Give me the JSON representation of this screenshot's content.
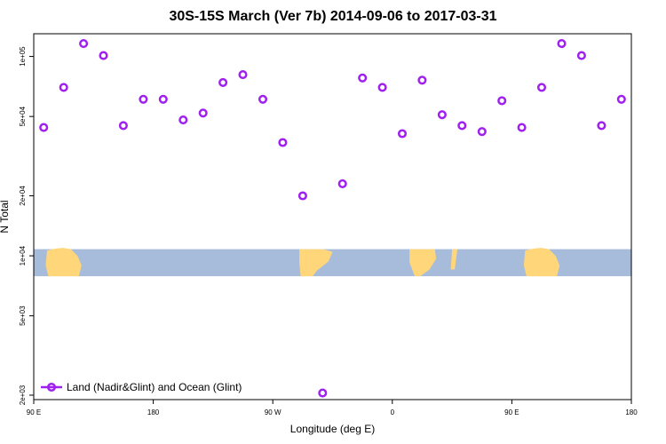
{
  "chart_data": {
    "type": "scatter",
    "title": "30S-15S March (Ver 7b)   2014-09-06 to 2017-03-31",
    "xlabel": "Longitude (deg E)",
    "ylabel": "N Total",
    "x_scale": "longitude-wrapped",
    "x_range": [
      90,
      540
    ],
    "x_ticks": [
      {
        "value": 90,
        "label": "90 E"
      },
      {
        "value": 180,
        "label": "180"
      },
      {
        "value": 270,
        "label": "90 W"
      },
      {
        "value": 360,
        "label": "0"
      },
      {
        "value": 450,
        "label": "90 E"
      },
      {
        "value": 540,
        "label": "180"
      }
    ],
    "y_scale": "log",
    "y_range": [
      1900,
      130000
    ],
    "y_ticks": [
      {
        "value": 2000,
        "label": "2e+03"
      },
      {
        "value": 5000,
        "label": "5e+03"
      },
      {
        "value": 10000,
        "label": "1e+04"
      },
      {
        "value": 20000,
        "label": "2e+04"
      },
      {
        "value": 50000,
        "label": "5e+04"
      },
      {
        "value": 100000,
        "label": "1e+05"
      }
    ],
    "grid": false,
    "legend_position": "bottom-left",
    "series": [
      {
        "name": "Land (Nadir&Glint) and Ocean (Glint)",
        "color": "#a020f0",
        "marker": "open-circle",
        "points": [
          {
            "x": 97.5,
            "y": 44000
          },
          {
            "x": 112.5,
            "y": 70000
          },
          {
            "x": 127.5,
            "y": 116000
          },
          {
            "x": 142.5,
            "y": 101000
          },
          {
            "x": 157.5,
            "y": 45000
          },
          {
            "x": 172.5,
            "y": 61000
          },
          {
            "x": 187.5,
            "y": 61000
          },
          {
            "x": 202.5,
            "y": 48000
          },
          {
            "x": 217.5,
            "y": 52000
          },
          {
            "x": 232.5,
            "y": 74000
          },
          {
            "x": 247.5,
            "y": 81000
          },
          {
            "x": 262.5,
            "y": 61000
          },
          {
            "x": 277.5,
            "y": 37000
          },
          {
            "x": 292.5,
            "y": 20000
          },
          {
            "x": 307.5,
            "y": 2050
          },
          {
            "x": 322.5,
            "y": 23000
          },
          {
            "x": 337.5,
            "y": 78000
          },
          {
            "x": 352.5,
            "y": 70000
          },
          {
            "x": 367.5,
            "y": 41000
          },
          {
            "x": 382.5,
            "y": 76000
          },
          {
            "x": 397.5,
            "y": 51000
          },
          {
            "x": 412.5,
            "y": 45000
          },
          {
            "x": 427.5,
            "y": 42000
          },
          {
            "x": 442.5,
            "y": 60000
          },
          {
            "x": 457.5,
            "y": 44000
          },
          {
            "x": 472.5,
            "y": 70000
          },
          {
            "x": 487.5,
            "y": 116000
          },
          {
            "x": 502.5,
            "y": 101000
          },
          {
            "x": 517.5,
            "y": 45000
          },
          {
            "x": 532.5,
            "y": 61000
          }
        ]
      }
    ],
    "map_band": {
      "y_top": 10800,
      "y_bottom": 7900,
      "ocean_color": "#a7bcdb",
      "land_color": "#ffd77a"
    }
  }
}
